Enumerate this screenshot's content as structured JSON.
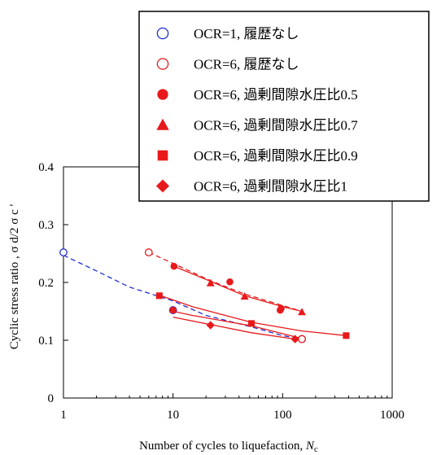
{
  "chart_data": {
    "type": "scatter",
    "xscale": "log",
    "xlim": [
      1,
      1000
    ],
    "ylim": [
      0,
      0.4
    ],
    "xticks": [
      "1",
      "10",
      "100",
      "1000"
    ],
    "yticks": [
      "0",
      "0.1",
      "0.2",
      "0.3",
      "0.4"
    ],
    "xlabel": "Number of cycles to liquefaction, ",
    "xlabel_var": "N",
    "xlabel_sub": "c",
    "ylabel": "Cyclic stress ratio ,  σ d/2 σ c '",
    "legend_position": "top-right",
    "colors": {
      "blue": "#1f2fd0",
      "red": "#e8191b"
    },
    "series": [
      {
        "name": "OCR=1,  履歴なし",
        "marker": "circle-open",
        "color": "blue",
        "points": [
          [
            1,
            0.252
          ],
          [
            10,
            0.152
          ],
          [
            150,
            0.102
          ]
        ]
      },
      {
        "name": "OCR=6,  履歴なし",
        "marker": "circle-open",
        "color": "red",
        "points": [
          [
            6,
            0.252
          ],
          [
            150,
            0.102
          ]
        ]
      },
      {
        "name": "OCR=6,  過剰間隙水圧比0.5",
        "marker": "circle",
        "color": "red",
        "points": [
          [
            10.2,
            0.228
          ],
          [
            33,
            0.201
          ],
          [
            95,
            0.152
          ],
          [
            97,
            0.155
          ],
          [
            10,
            0.152
          ]
        ]
      },
      {
        "name": "OCR=6,  過剰間隙水圧比0.7",
        "marker": "triangle",
        "color": "red",
        "points": [
          [
            22,
            0.199
          ],
          [
            45,
            0.176
          ],
          [
            150,
            0.149
          ]
        ]
      },
      {
        "name": "OCR=6,  過剰間隙水圧比0.9",
        "marker": "square",
        "color": "red",
        "points": [
          [
            7.5,
            0.177
          ],
          [
            52,
            0.129
          ],
          [
            380,
            0.108
          ]
        ]
      },
      {
        "name": "OCR=6,   過剰間隙水圧比1",
        "marker": "diamond",
        "color": "red",
        "points": [
          [
            22,
            0.126
          ],
          [
            130,
            0.102
          ]
        ]
      }
    ],
    "curves": [
      {
        "color": "blue",
        "style": "dashed",
        "points": [
          [
            1,
            0.247
          ],
          [
            2,
            0.22
          ],
          [
            4,
            0.192
          ],
          [
            10,
            0.168
          ],
          [
            20,
            0.143
          ],
          [
            50,
            0.124
          ],
          [
            100,
            0.108
          ],
          [
            150,
            0.102
          ]
        ]
      },
      {
        "color": "red",
        "style": "dashed",
        "points": [
          [
            6,
            0.252
          ],
          [
            10,
            0.233
          ],
          [
            22,
            0.203
          ],
          [
            45,
            0.18
          ],
          [
            100,
            0.16
          ],
          [
            150,
            0.15
          ]
        ]
      },
      {
        "color": "red",
        "style": "solid",
        "points": [
          [
            10.2,
            0.228
          ],
          [
            22,
            0.202
          ],
          [
            45,
            0.177
          ],
          [
            100,
            0.158
          ],
          [
            150,
            0.15
          ]
        ]
      },
      {
        "color": "red",
        "style": "solid",
        "points": [
          [
            7.5,
            0.178
          ],
          [
            15,
            0.158
          ],
          [
            52,
            0.131
          ],
          [
            150,
            0.116
          ],
          [
            380,
            0.108
          ]
        ]
      },
      {
        "color": "red",
        "style": "solid",
        "points": [
          [
            10,
            0.14
          ],
          [
            22,
            0.127
          ],
          [
            52,
            0.113
          ],
          [
            130,
            0.102
          ],
          [
            150,
            0.103
          ],
          [
            52,
            0.125
          ],
          [
            15,
            0.143
          ],
          [
            10,
            0.15
          ]
        ]
      }
    ]
  }
}
